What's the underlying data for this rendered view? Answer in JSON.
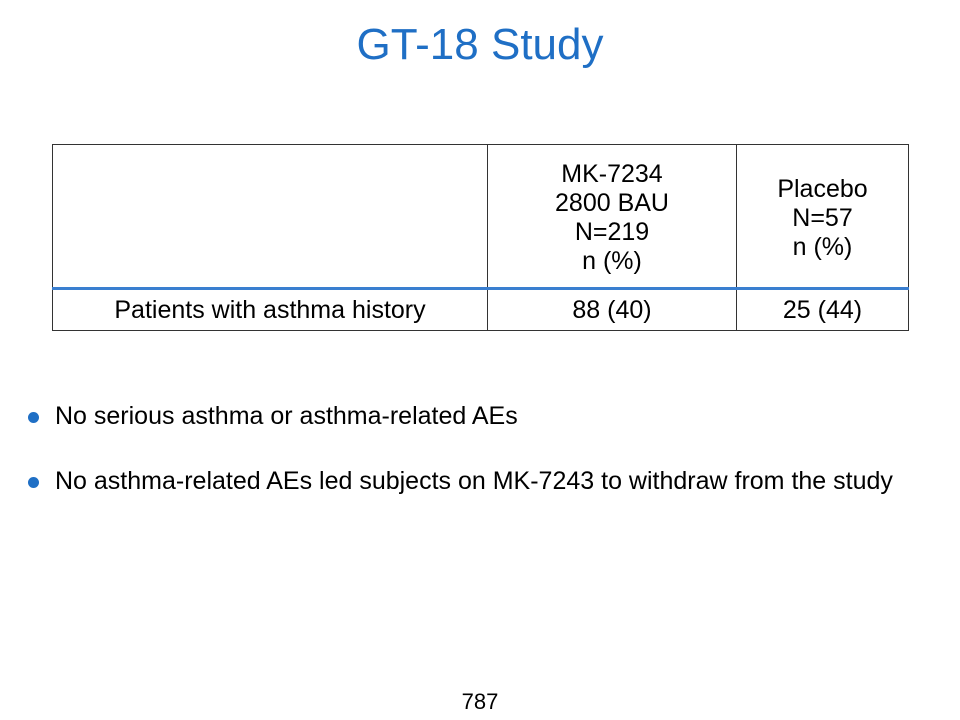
{
  "slide": {
    "title": "GT-18 Study",
    "page_number": "787"
  },
  "table": {
    "header": {
      "row_label": "",
      "columns": [
        {
          "lines": [
            "MK-7234",
            "2800 BAU",
            "N=219",
            "n (%)"
          ]
        },
        {
          "lines": [
            "Placebo",
            "N=57",
            "n (%)"
          ]
        }
      ]
    },
    "rows": [
      {
        "label": "Patients with asthma history",
        "cells": [
          "88 (40)",
          "25 (44)"
        ]
      }
    ]
  },
  "bullets": [
    "No serious asthma or asthma-related AEs",
    "No asthma-related AEs led subjects on MK-7243 to withdraw from the study"
  ],
  "colors": {
    "title": "#1f6fc5",
    "bullet": "#1f6fc5",
    "header_rule": "#3a7fd0",
    "border": "#333333"
  }
}
